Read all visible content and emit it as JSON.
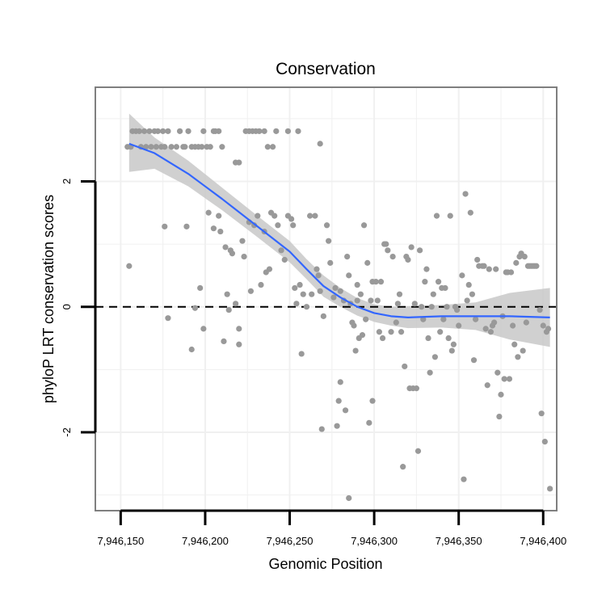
{
  "chart_data": {
    "type": "scatter",
    "title": "Conservation",
    "xlabel": "Genomic Position",
    "ylabel": "phyloP LRT conservation scores",
    "xlim": [
      7946135,
      7946408
    ],
    "ylim": [
      -3.25,
      3.5
    ],
    "x_ticks": [
      7946150,
      7946200,
      7946250,
      7946300,
      7946350,
      7946400
    ],
    "x_tick_labels": [
      "7,946,150",
      "7,946,200",
      "7,946,250",
      "7,946,300",
      "7,946,350",
      "7,946,400"
    ],
    "y_ticks": [
      -2,
      0,
      2
    ],
    "y_tick_labels": [
      "-2",
      "0",
      "2"
    ],
    "grid": true,
    "reference_line": {
      "y": 0,
      "style": "dashed"
    },
    "colors": {
      "points": "#999999",
      "smooth_line": "#3366ff",
      "confidence_band": "#c8c8c8",
      "grid": "#f0f0f0",
      "panel_border": "#7f7f7f"
    },
    "series": [
      {
        "name": "phyloP scores",
        "kind": "points",
        "points": [
          [
            7946154,
            2.55
          ],
          [
            7946156,
            2.55
          ],
          [
            7946157,
            2.8
          ],
          [
            7946159,
            2.8
          ],
          [
            7946161,
            2.8
          ],
          [
            7946162,
            2.55
          ],
          [
            7946164,
            2.8
          ],
          [
            7946165,
            2.55
          ],
          [
            7946167,
            2.8
          ],
          [
            7946168,
            2.55
          ],
          [
            7946170,
            2.8
          ],
          [
            7946171,
            2.55
          ],
          [
            7946172,
            2.8
          ],
          [
            7946174,
            2.55
          ],
          [
            7946175,
            2.8
          ],
          [
            7946176,
            2.55
          ],
          [
            7946178,
            2.8
          ],
          [
            7946180,
            2.55
          ],
          [
            7946183,
            2.55
          ],
          [
            7946185,
            2.8
          ],
          [
            7946187,
            2.55
          ],
          [
            7946188,
            2.55
          ],
          [
            7946190,
            2.8
          ],
          [
            7946192,
            2.55
          ],
          [
            7946194,
            2.55
          ],
          [
            7946196,
            2.55
          ],
          [
            7946198,
            2.55
          ],
          [
            7946199,
            2.8
          ],
          [
            7946201,
            2.55
          ],
          [
            7946203,
            2.55
          ],
          [
            7946205,
            2.8
          ],
          [
            7946206,
            2.8
          ],
          [
            7946208,
            2.8
          ],
          [
            7946210,
            2.55
          ],
          [
            7946218,
            2.3
          ],
          [
            7946220,
            2.3
          ],
          [
            7946224,
            2.8
          ],
          [
            7946226,
            2.8
          ],
          [
            7946228,
            2.8
          ],
          [
            7946230,
            2.8
          ],
          [
            7946232,
            2.8
          ],
          [
            7946235,
            2.8
          ],
          [
            7946237,
            2.55
          ],
          [
            7946240,
            2.55
          ],
          [
            7946242,
            2.8
          ],
          [
            7946249,
            2.8
          ],
          [
            7946255,
            2.8
          ],
          [
            7946268,
            2.6
          ],
          [
            7946155,
            0.65
          ],
          [
            7946176,
            1.28
          ],
          [
            7946178,
            -0.18
          ],
          [
            7946189,
            1.28
          ],
          [
            7946192,
            -0.68
          ],
          [
            7946194,
            -0.02
          ],
          [
            7946197,
            0.3
          ],
          [
            7946199,
            -0.35
          ],
          [
            7946202,
            1.5
          ],
          [
            7946205,
            1.25
          ],
          [
            7946208,
            1.45
          ],
          [
            7946209,
            1.2
          ],
          [
            7946211,
            -0.55
          ],
          [
            7946212,
            0.95
          ],
          [
            7946213,
            0.2
          ],
          [
            7946214,
            -0.05
          ],
          [
            7946215,
            0.9
          ],
          [
            7946216,
            0.85
          ],
          [
            7946218,
            0.05
          ],
          [
            7946220,
            -0.35
          ],
          [
            7946220,
            -0.6
          ],
          [
            7946222,
            1.05
          ],
          [
            7946223,
            0.8
          ],
          [
            7946226,
            1.35
          ],
          [
            7946227,
            0.25
          ],
          [
            7946229,
            1.3
          ],
          [
            7946231,
            1.45
          ],
          [
            7946233,
            0.35
          ],
          [
            7946235,
            1.2
          ],
          [
            7946236,
            0.55
          ],
          [
            7946238,
            0.6
          ],
          [
            7946239,
            1.5
          ],
          [
            7946241,
            1.45
          ],
          [
            7946243,
            1.3
          ],
          [
            7946245,
            0.9
          ],
          [
            7946247,
            0.75
          ],
          [
            7946249,
            1.45
          ],
          [
            7946251,
            1.4
          ],
          [
            7946252,
            1.3
          ],
          [
            7946253,
            0.3
          ],
          [
            7946254,
            0.05
          ],
          [
            7946256,
            0.35
          ],
          [
            7946257,
            -0.75
          ],
          [
            7946258,
            0.2
          ],
          [
            7946260,
            0
          ],
          [
            7946262,
            1.45
          ],
          [
            7946263,
            0.2
          ],
          [
            7946265,
            1.45
          ],
          [
            7946266,
            0.6
          ],
          [
            7946267,
            0.5
          ],
          [
            7946268,
            0.25
          ],
          [
            7946269,
            -1.95
          ],
          [
            7946270,
            -0.15
          ],
          [
            7946272,
            1.3
          ],
          [
            7946273,
            1.05
          ],
          [
            7946274,
            0.7
          ],
          [
            7946276,
            0.15
          ],
          [
            7946277,
            0.3
          ],
          [
            7946278,
            -1.9
          ],
          [
            7946279,
            -1.5
          ],
          [
            7946280,
            -1.2
          ],
          [
            7946280,
            0.25
          ],
          [
            7946282,
            0.1
          ],
          [
            7946283,
            -1.65
          ],
          [
            7946284,
            0.8
          ],
          [
            7946285,
            0.5
          ],
          [
            7946285,
            -3.05
          ],
          [
            7946286,
            0.05
          ],
          [
            7946287,
            -0.25
          ],
          [
            7946288,
            -0.3
          ],
          [
            7946289,
            -0.7
          ],
          [
            7946290,
            0.35
          ],
          [
            7946290,
            0.1
          ],
          [
            7946291,
            -0.5
          ],
          [
            7946292,
            0.2
          ],
          [
            7946293,
            -0.45
          ],
          [
            7946294,
            1.3
          ],
          [
            7946295,
            -0.2
          ],
          [
            7946296,
            0.7
          ],
          [
            7946297,
            -1.85
          ],
          [
            7946298,
            0.1
          ],
          [
            7946299,
            -1.5
          ],
          [
            7946299,
            0.4
          ],
          [
            7946301,
            0.4
          ],
          [
            7946302,
            0.1
          ],
          [
            7946303,
            -0.4
          ],
          [
            7946304,
            0.4
          ],
          [
            7946305,
            -0.5
          ],
          [
            7946306,
            1.0
          ],
          [
            7946307,
            1.0
          ],
          [
            7946308,
            0.9
          ],
          [
            7946310,
            -0.4
          ],
          [
            7946311,
            0.8
          ],
          [
            7946313,
            -0.25
          ],
          [
            7946314,
            0.05
          ],
          [
            7946315,
            0.2
          ],
          [
            7946316,
            -0.4
          ],
          [
            7946317,
            -2.55
          ],
          [
            7946318,
            -0.95
          ],
          [
            7946319,
            0.8
          ],
          [
            7946320,
            0.75
          ],
          [
            7946321,
            -1.3
          ],
          [
            7946322,
            0.95
          ],
          [
            7946323,
            -1.3
          ],
          [
            7946324,
            0.05
          ],
          [
            7946325,
            -1.3
          ],
          [
            7946326,
            -2.3
          ],
          [
            7946327,
            0.9
          ],
          [
            7946328,
            0.0
          ],
          [
            7946329,
            -0.2
          ],
          [
            7946330,
            0.4
          ],
          [
            7946331,
            0.6
          ],
          [
            7946332,
            -0.5
          ],
          [
            7946333,
            -1.05
          ],
          [
            7946334,
            0.0
          ],
          [
            7946335,
            0.2
          ],
          [
            7946336,
            -0.8
          ],
          [
            7946337,
            1.45
          ],
          [
            7946338,
            0.4
          ],
          [
            7946339,
            -0.4
          ],
          [
            7946340,
            0.3
          ],
          [
            7946341,
            -0.2
          ],
          [
            7946342,
            0.3
          ],
          [
            7946343,
            0.0
          ],
          [
            7946344,
            -0.5
          ],
          [
            7946345,
            1.45
          ],
          [
            7946346,
            -0.7
          ],
          [
            7946347,
            -0.6
          ],
          [
            7946348,
            0.0
          ],
          [
            7946349,
            -0.05
          ],
          [
            7946350,
            -0.3
          ],
          [
            7946352,
            0.5
          ],
          [
            7946353,
            -2.75
          ],
          [
            7946354,
            1.8
          ],
          [
            7946355,
            0.1
          ],
          [
            7946356,
            0.35
          ],
          [
            7946357,
            1.5
          ],
          [
            7946358,
            0.2
          ],
          [
            7946359,
            -0.85
          ],
          [
            7946360,
            -0.2
          ],
          [
            7946361,
            0.75
          ],
          [
            7946362,
            0.65
          ],
          [
            7946364,
            0.65
          ],
          [
            7946365,
            0.65
          ],
          [
            7946366,
            -0.35
          ],
          [
            7946367,
            -1.25
          ],
          [
            7946368,
            0.6
          ],
          [
            7946369,
            -0.4
          ],
          [
            7946370,
            -0.3
          ],
          [
            7946371,
            -0.25
          ],
          [
            7946372,
            0.6
          ],
          [
            7946373,
            -1.05
          ],
          [
            7946374,
            -1.75
          ],
          [
            7946375,
            -1.4
          ],
          [
            7946376,
            -0.15
          ],
          [
            7946377,
            -1.15
          ],
          [
            7946378,
            0.55
          ],
          [
            7946379,
            0.55
          ],
          [
            7946380,
            -1.15
          ],
          [
            7946381,
            0.55
          ],
          [
            7946382,
            -0.3
          ],
          [
            7946383,
            -0.6
          ],
          [
            7946384,
            0.7
          ],
          [
            7946385,
            -0.8
          ],
          [
            7946386,
            0.8
          ],
          [
            7946387,
            0.85
          ],
          [
            7946388,
            -0.7
          ],
          [
            7946389,
            0.8
          ],
          [
            7946390,
            -0.25
          ],
          [
            7946391,
            0.65
          ],
          [
            7946392,
            0.65
          ],
          [
            7946393,
            0.65
          ],
          [
            7946394,
            0.65
          ],
          [
            7946395,
            0.65
          ],
          [
            7946396,
            0.65
          ],
          [
            7946398,
            -0.05
          ],
          [
            7946399,
            -1.7
          ],
          [
            7946400,
            -0.3
          ],
          [
            7946401,
            -2.15
          ],
          [
            7946402,
            -0.4
          ],
          [
            7946403,
            -0.35
          ],
          [
            7946404,
            -2.9
          ]
        ]
      },
      {
        "name": "loess fit",
        "kind": "line",
        "points": [
          [
            7946155,
            2.6
          ],
          [
            7946170,
            2.45
          ],
          [
            7946190,
            2.12
          ],
          [
            7946210,
            1.72
          ],
          [
            7946230,
            1.3
          ],
          [
            7946250,
            0.88
          ],
          [
            7946260,
            0.6
          ],
          [
            7946270,
            0.33
          ],
          [
            7946280,
            0.15
          ],
          [
            7946290,
            0.0
          ],
          [
            7946300,
            -0.1
          ],
          [
            7946310,
            -0.15
          ],
          [
            7946320,
            -0.17
          ],
          [
            7946340,
            -0.15
          ],
          [
            7946360,
            -0.15
          ],
          [
            7946380,
            -0.15
          ],
          [
            7946404,
            -0.17
          ]
        ]
      },
      {
        "name": "confidence band",
        "kind": "band",
        "upper": [
          [
            7946155,
            3.08
          ],
          [
            7946170,
            2.7
          ],
          [
            7946190,
            2.33
          ],
          [
            7946210,
            1.9
          ],
          [
            7946230,
            1.47
          ],
          [
            7946250,
            1.05
          ],
          [
            7946260,
            0.76
          ],
          [
            7946270,
            0.5
          ],
          [
            7946280,
            0.3
          ],
          [
            7946290,
            0.14
          ],
          [
            7946300,
            0.04
          ],
          [
            7946310,
            0.0
          ],
          [
            7946320,
            0.01
          ],
          [
            7946340,
            0.03
          ],
          [
            7946360,
            0.07
          ],
          [
            7946380,
            0.22
          ],
          [
            7946404,
            0.3
          ]
        ],
        "lower": [
          [
            7946155,
            2.15
          ],
          [
            7946170,
            2.2
          ],
          [
            7946190,
            1.92
          ],
          [
            7946210,
            1.54
          ],
          [
            7946230,
            1.13
          ],
          [
            7946250,
            0.71
          ],
          [
            7946260,
            0.44
          ],
          [
            7946270,
            0.16
          ],
          [
            7946280,
            0.0
          ],
          [
            7946290,
            -0.14
          ],
          [
            7946300,
            -0.24
          ],
          [
            7946310,
            -0.3
          ],
          [
            7946320,
            -0.34
          ],
          [
            7946340,
            -0.33
          ],
          [
            7946360,
            -0.37
          ],
          [
            7946380,
            -0.52
          ],
          [
            7946404,
            -0.64
          ]
        ]
      }
    ]
  }
}
